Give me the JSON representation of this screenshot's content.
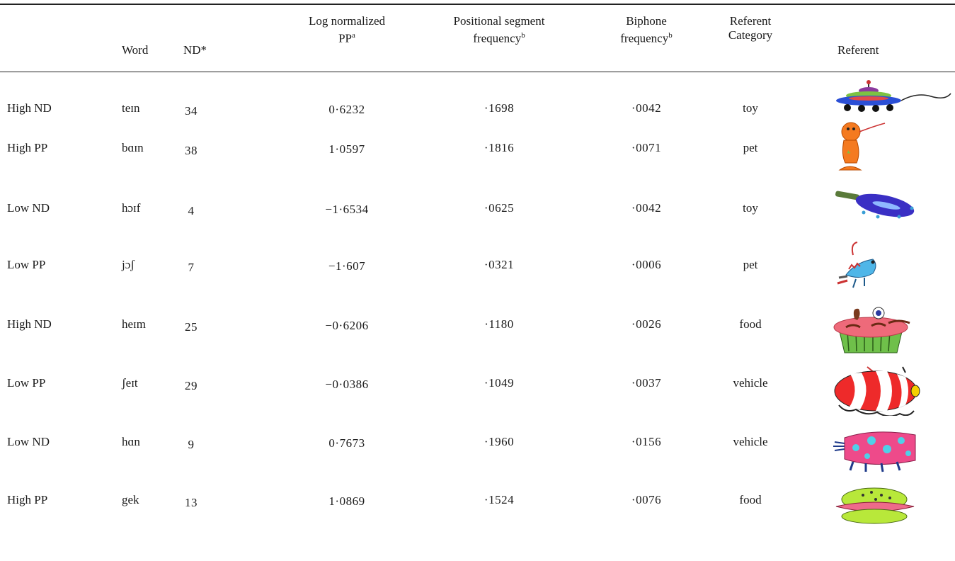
{
  "table": {
    "headers": {
      "word": "Word",
      "nd": "ND*",
      "pp_line1": "Log normalized",
      "pp_line2": "PP",
      "pp_sup": "a",
      "psf_line1": "Positional segment",
      "psf_line2": "frequency",
      "psf_sup": "b",
      "bf_line1": "Biphone",
      "bf_line2": "frequency",
      "bf_sup": "b",
      "rc_line1": "Referent",
      "rc_line2": "Category",
      "referent": "Referent"
    },
    "rows": [
      {
        "condition": "High ND",
        "word": "teɪn",
        "nd": "34",
        "pp": "0·6232",
        "psf": "·1698",
        "bf": "·0042",
        "category": "toy",
        "referent_icon": "toy-saucer-icon"
      },
      {
        "condition": "High PP",
        "word": "bɑɪn",
        "nd": "38",
        "pp": "1·0597",
        "psf": "·1816",
        "bf": "·0071",
        "category": "pet",
        "referent_icon": "pet-orange-creature-icon"
      },
      {
        "condition": "Low ND",
        "word": "hɔɪf",
        "nd": "4",
        "pp": "−1·6534",
        "psf": "·0625",
        "bf": "·0042",
        "category": "toy",
        "referent_icon": "toy-blue-ring-icon"
      },
      {
        "condition": "Low PP",
        "word": "jɔʃ",
        "nd": "7",
        "pp": "−1·607",
        "psf": "·0321",
        "bf": "·0006",
        "category": "pet",
        "referent_icon": "pet-blue-creature-icon"
      },
      {
        "condition": "High ND",
        "word": "heɪm",
        "nd": "25",
        "pp": "−0·6206",
        "psf": "·1180",
        "bf": "·0026",
        "category": "food",
        "referent_icon": "food-cupcake-icon"
      },
      {
        "condition": "Low PP",
        "word": "ʃeɪt",
        "nd": "29",
        "pp": "−0·0386",
        "psf": "·1049",
        "bf": "·0037",
        "category": "vehicle",
        "referent_icon": "vehicle-striped-icon"
      },
      {
        "condition": "Low ND",
        "word": "hɑn",
        "nd": "9",
        "pp": "0·7673",
        "psf": "·1960",
        "bf": "·0156",
        "category": "vehicle",
        "referent_icon": "vehicle-spotted-icon"
      },
      {
        "condition": "High PP",
        "word": "gek",
        "nd": "13",
        "pp": "1·0869",
        "psf": "·1524",
        "bf": "·0076",
        "category": "food",
        "referent_icon": "food-burger-icon"
      }
    ]
  }
}
